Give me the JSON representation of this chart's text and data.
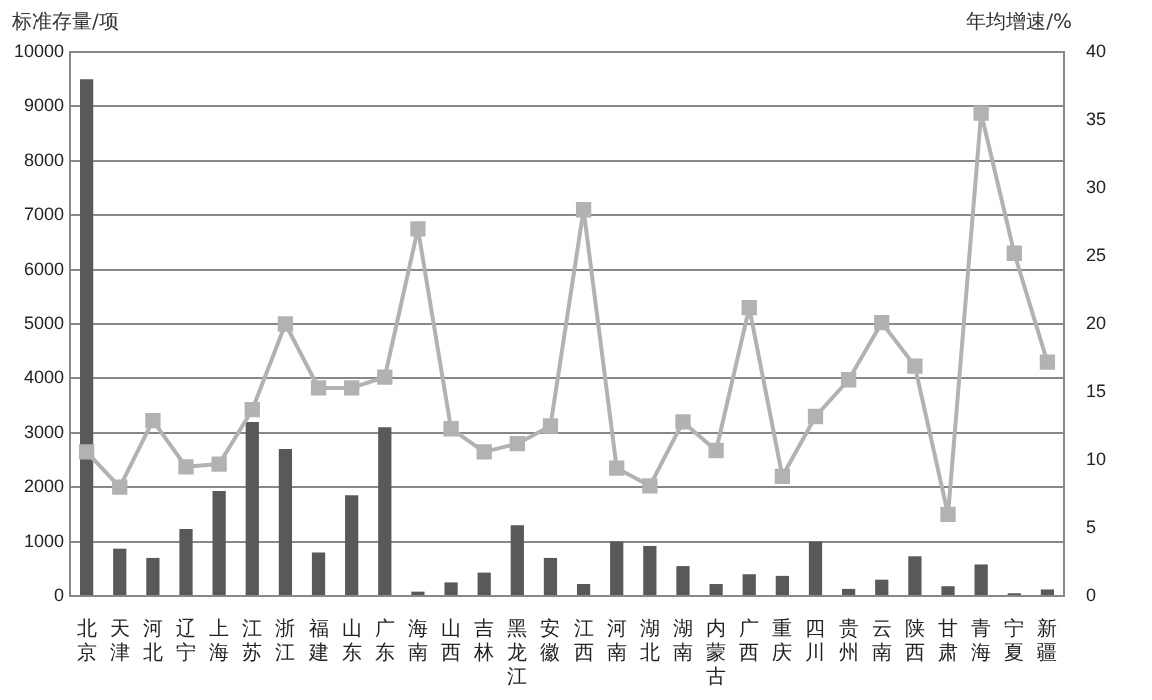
{
  "chart_data": {
    "type": "bar",
    "ylabel": "标准存量/项",
    "y2label": "年均增速/%",
    "categories": [
      "北京",
      "天津",
      "河北",
      "辽宁",
      "上海",
      "江苏",
      "浙江",
      "福建",
      "山东",
      "广东",
      "海南",
      "山西",
      "吉林",
      "黑龙江",
      "安徽",
      "江西",
      "河南",
      "湖北",
      "湖南",
      "内蒙古",
      "广西",
      "重庆",
      "四川",
      "贵州",
      "云南",
      "陕西",
      "甘肃",
      "青海",
      "宁夏",
      "新疆"
    ],
    "series": [
      {
        "color": "#595959",
        "values": [
          9500,
          870,
          700,
          1230,
          1930,
          3200,
          2700,
          800,
          1850,
          3100,
          80,
          250,
          430,
          1300,
          700,
          220,
          1000,
          920,
          550,
          220,
          400,
          370,
          1000,
          130,
          300,
          730,
          180,
          580,
          50,
          120
        ]
      },
      {
        "type": "line",
        "axis": "y2",
        "color": "#b2b2b2",
        "marker": "square",
        "values": [
          10.6,
          8.0,
          12.9,
          9.5,
          9.7,
          13.7,
          20.0,
          15.3,
          15.3,
          16.1,
          27.0,
          12.3,
          10.6,
          11.2,
          12.5,
          28.4,
          9.4,
          8.1,
          12.8,
          10.7,
          21.2,
          8.8,
          13.2,
          15.9,
          20.1,
          16.9,
          6.0,
          35.5,
          25.2,
          17.2
        ]
      }
    ],
    "ylim": [
      0,
      10000
    ],
    "yticks": [
      0,
      1000,
      2000,
      3000,
      4000,
      5000,
      6000,
      7000,
      8000,
      9000,
      10000
    ],
    "y2lim": [
      0,
      40
    ],
    "y2ticks": [
      0,
      5,
      10,
      15,
      20,
      25,
      30,
      35,
      40
    ],
    "grid": "y",
    "legend": false
  }
}
